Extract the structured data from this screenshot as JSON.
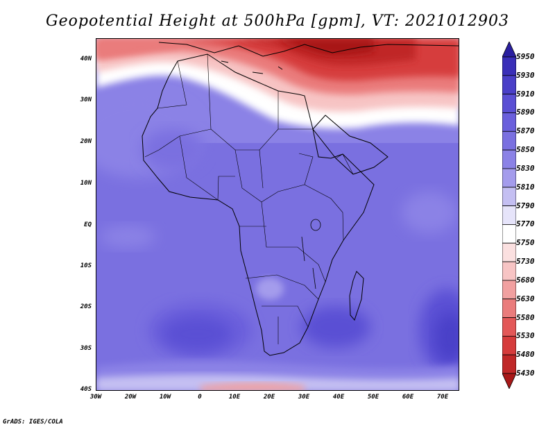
{
  "title": "Geopotential Height at 500hPa [gpm], VT: 2021012903",
  "credit": "GrADS: IGES/COLA",
  "lat_labels": [
    "40N",
    "30N",
    "20N",
    "10N",
    "EQ",
    "10S",
    "20S",
    "30S",
    "40S"
  ],
  "lon_labels": [
    "30W",
    "20W",
    "10W",
    "0",
    "10E",
    "20E",
    "30E",
    "40E",
    "50E",
    "60E",
    "70E"
  ],
  "colorbar": {
    "levels": [
      "5950",
      "5930",
      "5910",
      "5890",
      "5870",
      "5850",
      "5830",
      "5810",
      "5790",
      "5770",
      "5750",
      "5730",
      "5680",
      "5630",
      "5580",
      "5530",
      "5480",
      "5430"
    ],
    "colors": [
      "#2a1fa0",
      "#3a2fb8",
      "#4a3fc8",
      "#5a4fd4",
      "#6a5fdc",
      "#7a70e0",
      "#8b82e6",
      "#a49cec",
      "#c4bff2",
      "#e6e4fa",
      "#ffffff",
      "#fbe0e0",
      "#f7c4c4",
      "#f1a0a0",
      "#ea7c7c",
      "#e35858",
      "#d63c3c",
      "#c02828",
      "#a81818"
    ]
  },
  "map": {
    "region": "Africa",
    "field": "500hPa geopotential height",
    "lon_range": [
      "30W",
      "75E"
    ],
    "lat_range": [
      "40S",
      "45N"
    ]
  }
}
